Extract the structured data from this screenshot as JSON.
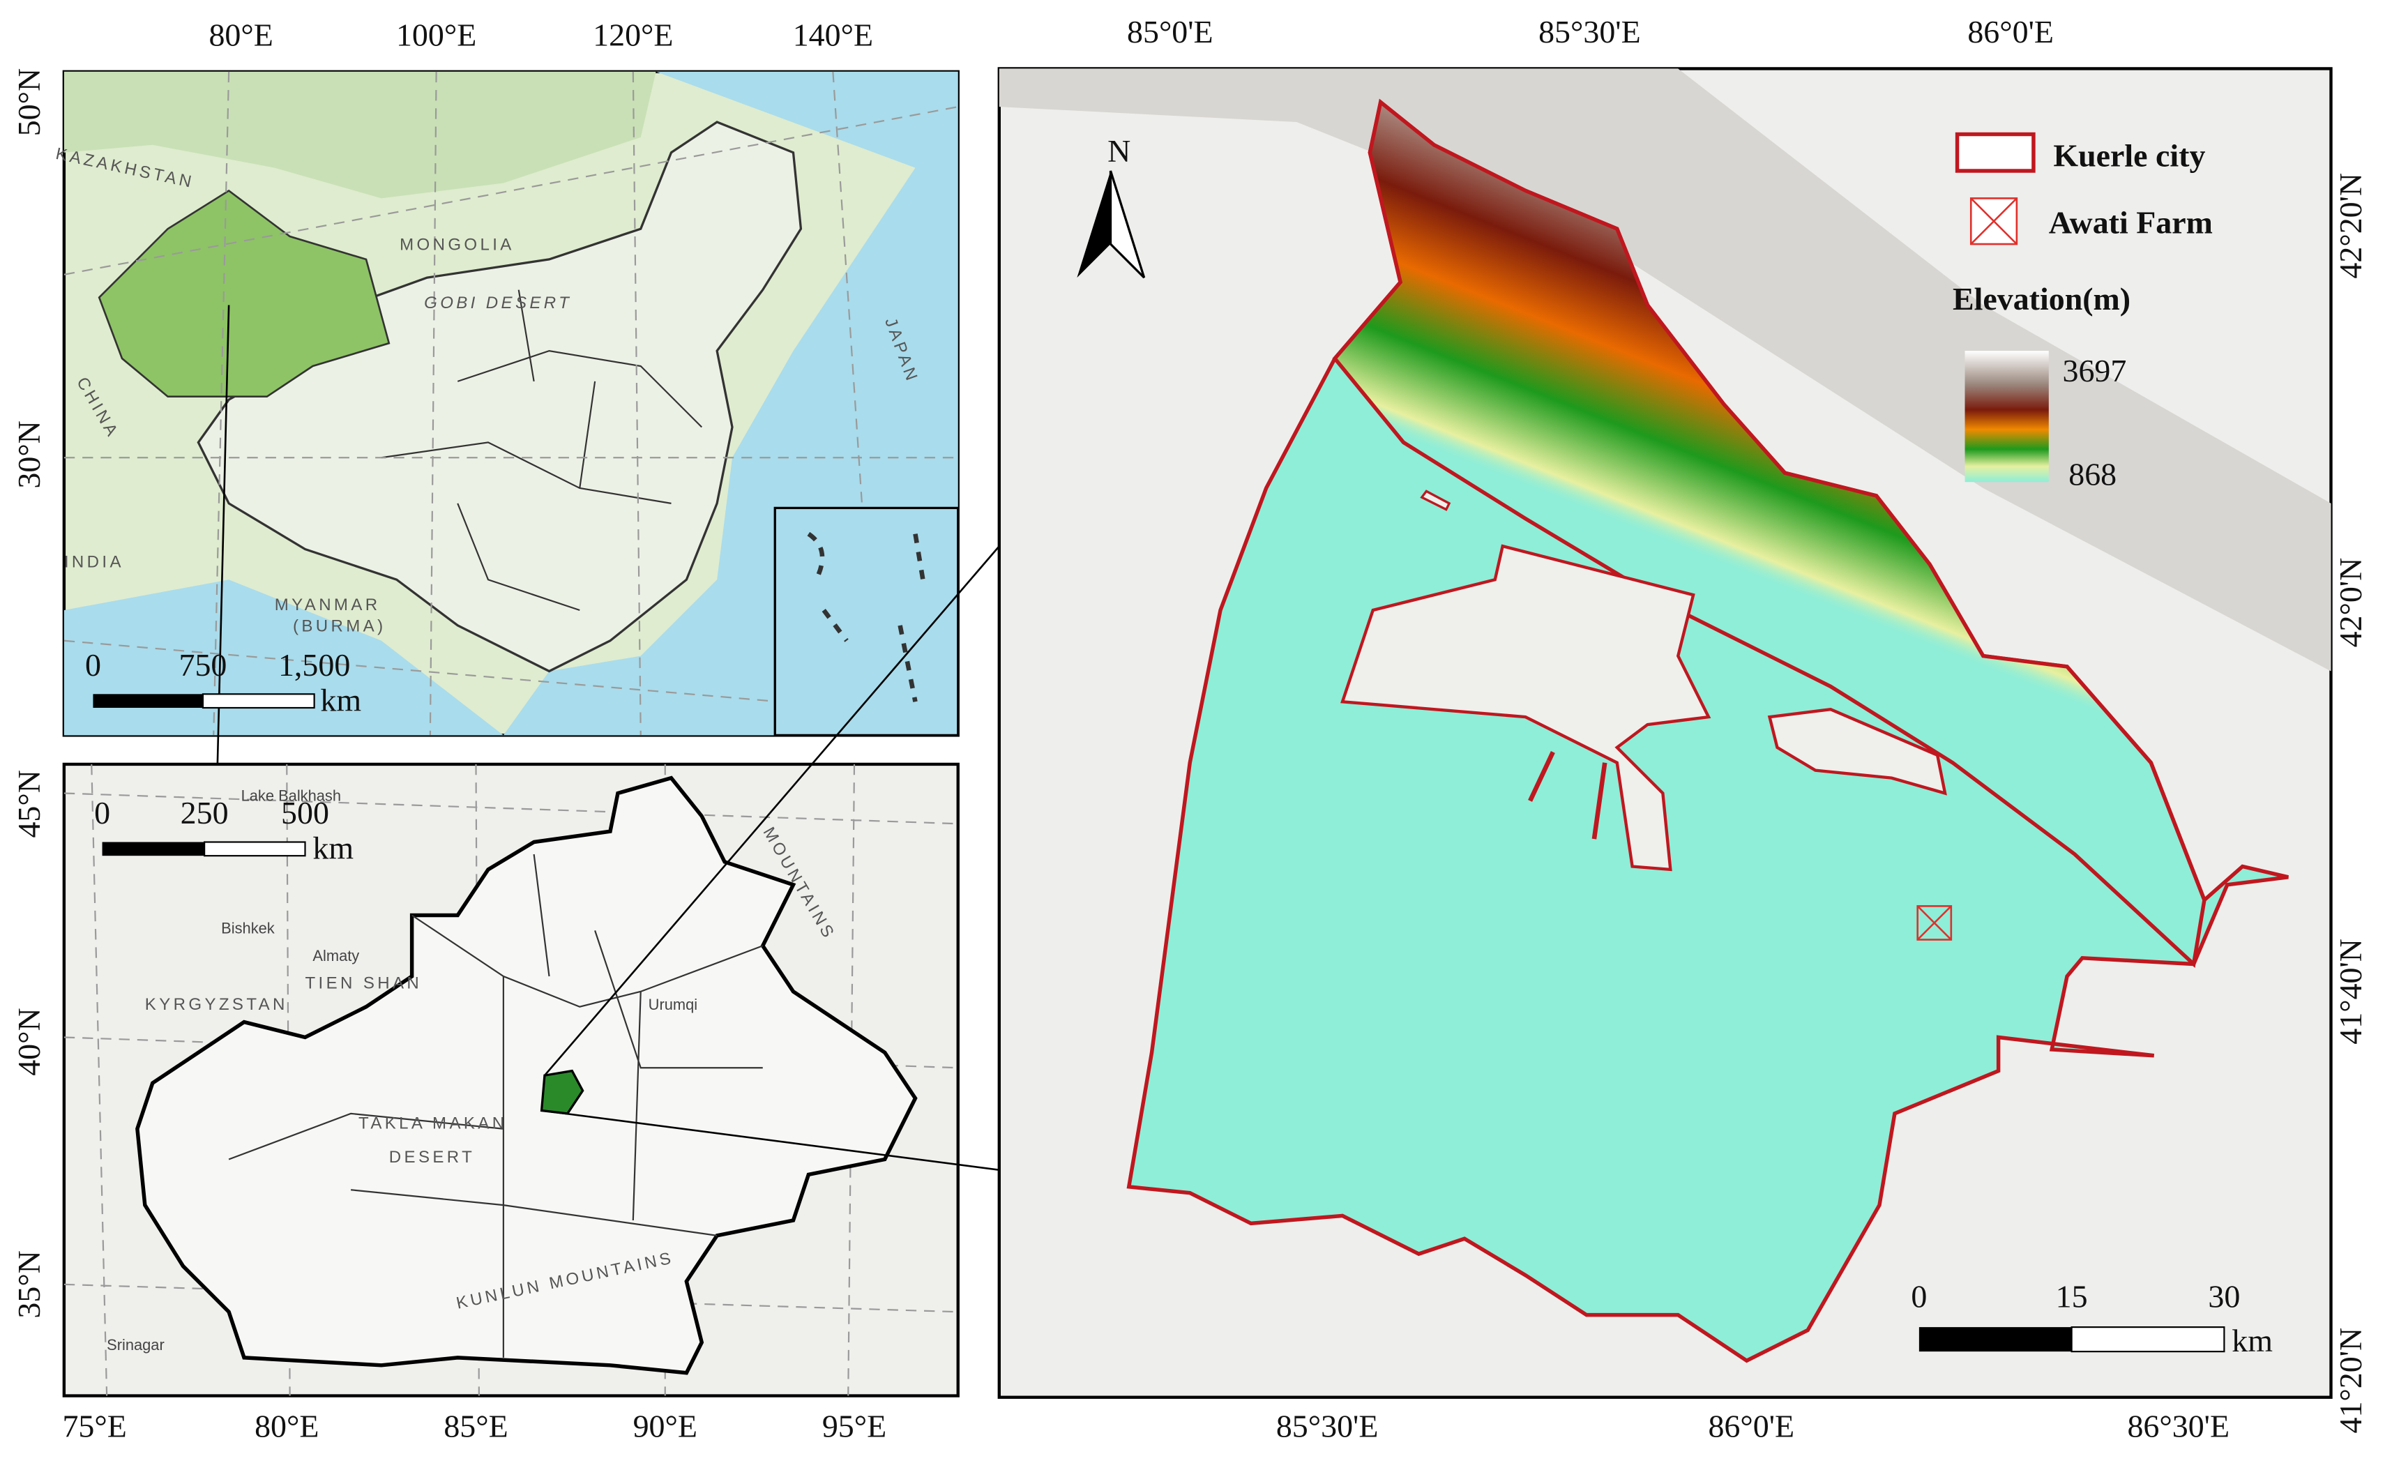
{
  "inset_china": {
    "lon_labels": [
      "80°E",
      "100°E",
      "120°E",
      "140°E"
    ],
    "lat_labels": [
      "50°N",
      "30°N"
    ],
    "place_labels": [
      "KAZAKHSTAN",
      "MONGOLIA",
      "GOBI DESERT",
      "JAPAN",
      "CHINA",
      "INDIA",
      "MYANMAR",
      "(BURMA)"
    ],
    "scale_bar": {
      "ticks": [
        "0",
        "750",
        "1,500"
      ],
      "unit": "km"
    }
  },
  "inset_xinjiang": {
    "lon_labels": [
      "75°E",
      "80°E",
      "85°E",
      "90°E",
      "95°E"
    ],
    "lat_labels": [
      "45°N",
      "40°N",
      "35°N"
    ],
    "place_labels": [
      "KYRGYZSTAN",
      "TIEN SHAN",
      "TAKLA MAKAN",
      "DESERT",
      "KUNLUN MOUNTAINS",
      "MOUNTAINS"
    ],
    "city_labels": [
      "Bishkek",
      "Almaty",
      "Urumqi",
      "Srinagar",
      "Lake Balkhash"
    ],
    "scale_bar": {
      "ticks": [
        "0",
        "250",
        "500"
      ],
      "unit": "km"
    }
  },
  "main_map": {
    "lon_labels_top": [
      "85°0'E",
      "85°30'E",
      "86°0'E"
    ],
    "lon_labels_bottom": [
      "85°30'E",
      "86°0'E",
      "86°30'E"
    ],
    "lat_labels": [
      "42°20'N",
      "42°0'N",
      "41°40'N",
      "41°20'N"
    ],
    "north_arrow": "N",
    "legend": {
      "items": [
        "Kuerle city",
        "Awati Farm"
      ],
      "elevation_title": "Elevation(m)",
      "elevation_max": 3697,
      "elevation_min": 868
    },
    "scale_bar": {
      "ticks": [
        "0",
        "15",
        "30"
      ],
      "unit": "km"
    }
  }
}
